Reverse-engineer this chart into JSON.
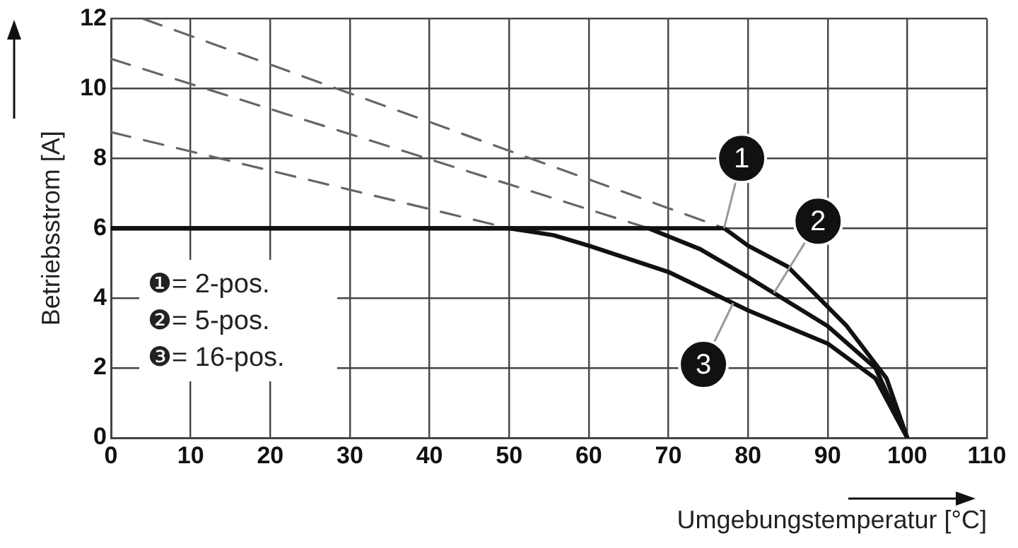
{
  "chart_data": {
    "type": "line",
    "xlabel": "Umgebungstemperatur [°C]",
    "ylabel": "Betriebsstrom [A]",
    "xlim": [
      0,
      110
    ],
    "xticks": [
      0,
      10,
      20,
      30,
      40,
      50,
      60,
      70,
      80,
      90,
      100,
      110
    ],
    "ylim": [
      0,
      12
    ],
    "yticks": [
      0,
      2,
      4,
      6,
      8,
      10,
      12
    ],
    "grid": true,
    "series": [
      {
        "color": "#111111",
        "line_style": "solid",
        "x": [
          0,
          77,
          80,
          85,
          92.4,
          97.4,
          100
        ],
        "values": [
          6,
          6,
          5.5,
          4.9,
          3.2,
          1.7,
          0
        ]
      },
      {
        "color": "#111111",
        "line_style": "solid",
        "x": [
          0,
          67.5,
          74,
          80,
          90,
          96,
          100
        ],
        "values": [
          6,
          6,
          5.4,
          4.6,
          3.2,
          2,
          0
        ]
      },
      {
        "color": "#111111",
        "line_style": "solid",
        "x": [
          0,
          50,
          55.6,
          60,
          70,
          80,
          90,
          96,
          100
        ],
        "values": [
          6,
          6,
          5.8,
          5.5,
          4.75,
          3.65,
          2.7,
          1.7,
          0
        ]
      },
      {
        "color": "#666666",
        "line_style": "dashed",
        "x": [
          4,
          77
        ],
        "values": [
          12,
          6
        ]
      },
      {
        "color": "#666666",
        "line_style": "dashed",
        "x": [
          0,
          67.5
        ],
        "values": [
          10.85,
          6
        ]
      },
      {
        "color": "#666666",
        "line_style": "dashed",
        "x": [
          0,
          50
        ],
        "values": [
          8.75,
          6
        ]
      }
    ],
    "annotations": [
      "❶= 2-pos.",
      "❷= 5-pos.",
      "❸= 16-pos.",
      {
        "text": "1",
        "x": 79.2,
        "y": 8
      },
      {
        "text": "2",
        "x": 88.8,
        "y": 6.2
      },
      {
        "text": "3",
        "x": 74.4,
        "y": 2.1
      }
    ]
  }
}
